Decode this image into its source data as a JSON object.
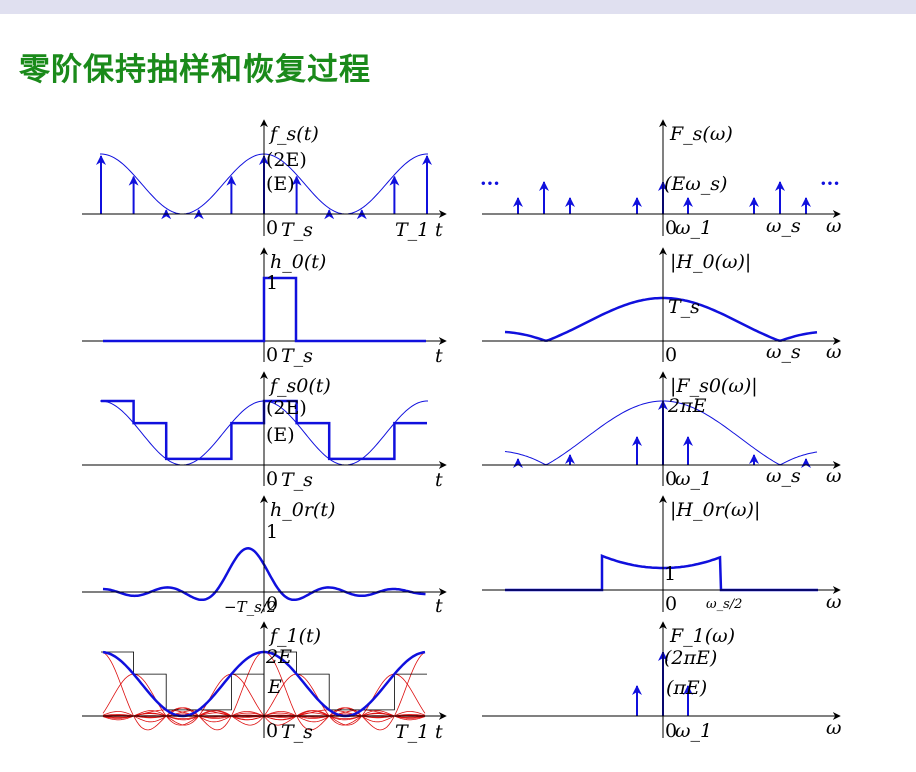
{
  "title": "零阶保持抽样和恢复过程",
  "colors": {
    "title": "#1a8a1a",
    "signal": "#1010dd",
    "envelope": "#1010dd",
    "interp": "#dd1010",
    "axis": "#000000"
  },
  "panels": [
    {
      "id": "fs_t",
      "labels": {
        "func": "f_s(t)",
        "mark1": "(2E)",
        "mark2": "(E)",
        "origin": "0",
        "ts": "T_s",
        "t1": "T_1",
        "axis": "t"
      },
      "envelope": "E(1+cos(2πt/T1))",
      "ts_over_t1": 0.2,
      "impulses_at": "t = k·Ts"
    },
    {
      "id": "Fs_w",
      "labels": {
        "func": "F_s(ω)",
        "mark": "(Eω_s)",
        "origin": "0",
        "w1": "ω_1",
        "ws": "ω_s",
        "axis": "ω",
        "dots": "···"
      }
    },
    {
      "id": "h0_t",
      "labels": {
        "func": "h_0(t)",
        "one": "1",
        "origin": "0",
        "ts": "T_s",
        "axis": "t"
      }
    },
    {
      "id": "H0_w",
      "labels": {
        "func": "|H_0(ω)|",
        "ts": "T_s",
        "origin": "0",
        "ws": "ω_s",
        "axis": "ω"
      }
    },
    {
      "id": "fs0_t",
      "labels": {
        "func": "f_s0(t)",
        "mark1": "(2E)",
        "mark2": "(E)",
        "origin": "0",
        "ts": "T_s",
        "axis": "t"
      }
    },
    {
      "id": "Fs0_w",
      "labels": {
        "func": "|F_s0(ω)|",
        "mark": "2πE",
        "origin": "0",
        "w1": "ω_1",
        "ws": "ω_s",
        "axis": "ω"
      }
    },
    {
      "id": "h0r_t",
      "labels": {
        "func": "h_0r(t)",
        "one": "1",
        "neg": "−T_s/2",
        "origin": "0",
        "axis": "t"
      }
    },
    {
      "id": "H0r_w",
      "labels": {
        "func": "|H_0r(ω)|",
        "one": "1",
        "origin": "0",
        "half": "ω_s/2",
        "axis": "ω"
      }
    },
    {
      "id": "f1_t",
      "labels": {
        "func": "f_1(t)",
        "mark1": "2E",
        "mark2": "E",
        "origin": "0",
        "ts": "T_s",
        "t1": "T_1",
        "axis": "t"
      }
    },
    {
      "id": "F1_w",
      "labels": {
        "func": "F_1(ω)",
        "mark1": "(2πE)",
        "mark2": "(πE)",
        "origin": "0",
        "w1": "ω_1",
        "axis": "ω"
      }
    }
  ]
}
